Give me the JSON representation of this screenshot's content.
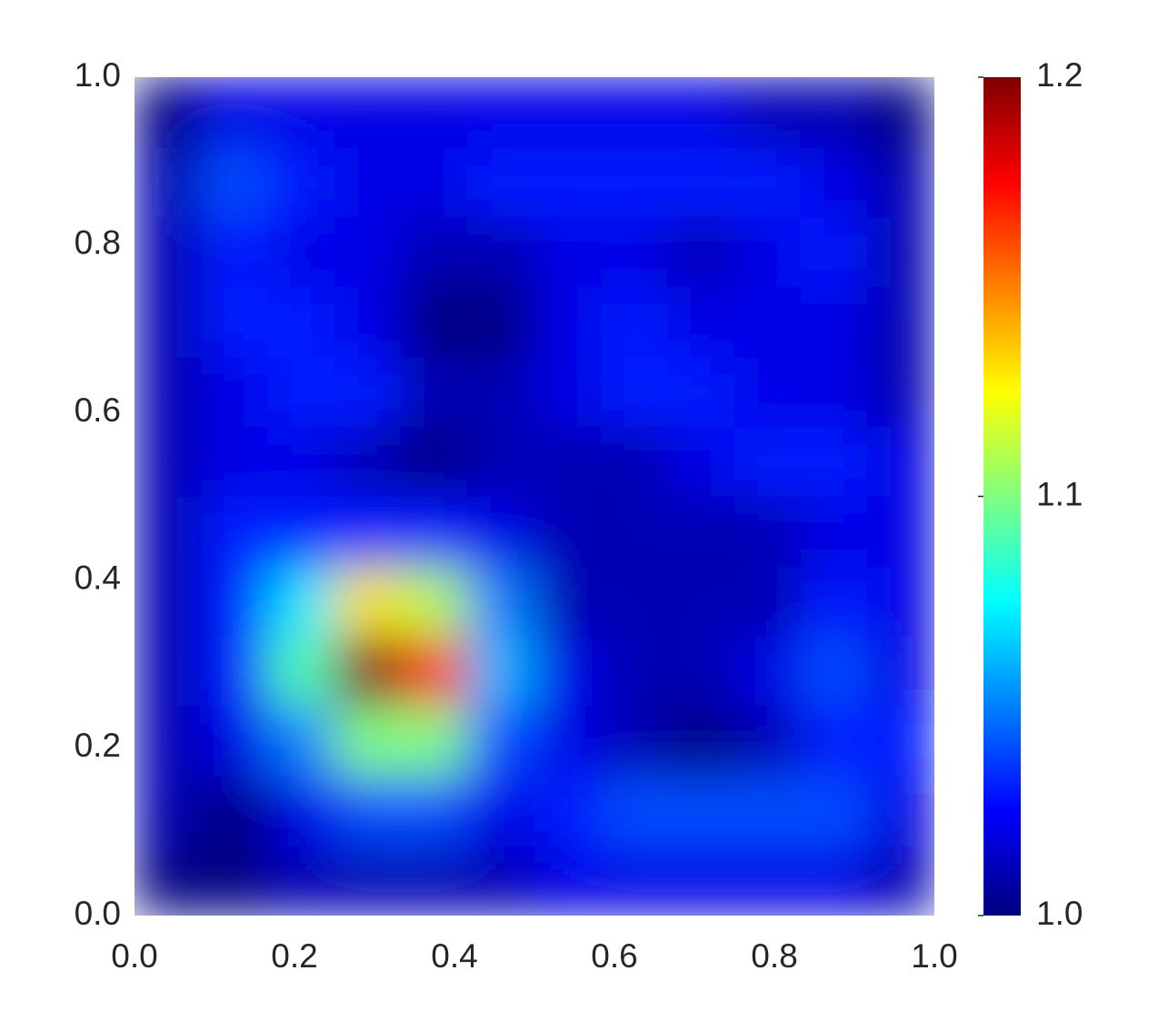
{
  "chart_data": {
    "type": "heatmap",
    "colormap": "jet",
    "x": [
      0.042,
      0.125,
      0.208,
      0.292,
      0.375,
      0.458,
      0.542,
      0.625,
      0.708,
      0.792,
      0.875,
      0.958
    ],
    "y": [
      0.042,
      0.125,
      0.208,
      0.292,
      0.375,
      0.458,
      0.542,
      0.625,
      0.708,
      0.792,
      0.875,
      0.958
    ],
    "z": [
      [
        1.0,
        1.0,
        1.01,
        1.01,
        1.01,
        1.01,
        1.02,
        1.02,
        1.02,
        1.02,
        1.02,
        1.01
      ],
      [
        1.01,
        1.0,
        1.02,
        1.04,
        1.04,
        1.02,
        1.03,
        1.04,
        1.04,
        1.04,
        1.04,
        1.02
      ],
      [
        1.01,
        1.02,
        1.05,
        1.1,
        1.1,
        1.04,
        1.02,
        1.01,
        1.0,
        1.01,
        1.03,
        1.03
      ],
      [
        1.01,
        1.03,
        1.09,
        1.2,
        1.17,
        1.06,
        1.02,
        1.01,
        1.01,
        1.02,
        1.04,
        1.02
      ],
      [
        1.01,
        1.03,
        1.07,
        1.13,
        1.11,
        1.05,
        1.01,
        1.01,
        1.01,
        1.01,
        1.03,
        1.02
      ],
      [
        1.01,
        1.03,
        1.03,
        1.03,
        1.03,
        1.02,
        1.01,
        1.01,
        1.01,
        1.01,
        1.02,
        1.02
      ],
      [
        1.01,
        1.02,
        1.02,
        1.01,
        1.0,
        1.01,
        1.01,
        1.01,
        1.02,
        1.03,
        1.03,
        1.02
      ],
      [
        1.01,
        1.02,
        1.03,
        1.03,
        1.01,
        1.01,
        1.02,
        1.03,
        1.03,
        1.02,
        1.02,
        1.01
      ],
      [
        1.01,
        1.03,
        1.03,
        1.02,
        1.0,
        1.0,
        1.02,
        1.03,
        1.02,
        1.02,
        1.02,
        1.01
      ],
      [
        1.01,
        1.03,
        1.02,
        1.02,
        1.01,
        1.01,
        1.02,
        1.02,
        1.01,
        1.02,
        1.03,
        1.01
      ],
      [
        1.01,
        1.04,
        1.03,
        1.02,
        1.02,
        1.03,
        1.03,
        1.03,
        1.03,
        1.03,
        1.02,
        1.01
      ],
      [
        1.0,
        1.02,
        1.02,
        1.02,
        1.02,
        1.02,
        1.02,
        1.02,
        1.02,
        1.01,
        1.01,
        1.0
      ]
    ],
    "xlim": [
      0,
      1
    ],
    "ylim": [
      0,
      1
    ],
    "xticks": [
      {
        "value": 0,
        "label": "0.0"
      },
      0.2,
      0.4,
      0.6,
      0.8,
      {
        "value": 1,
        "label": "1.0"
      }
    ],
    "yticks": [
      {
        "value": 0,
        "label": "0.0"
      },
      0.2,
      0.4,
      0.6,
      0.8,
      {
        "value": 1,
        "label": "1.0"
      }
    ],
    "zlim": [
      1,
      1.2
    ],
    "zticks": [
      {
        "value": 1,
        "label": "1.0"
      },
      1.1,
      1.2
    ]
  }
}
